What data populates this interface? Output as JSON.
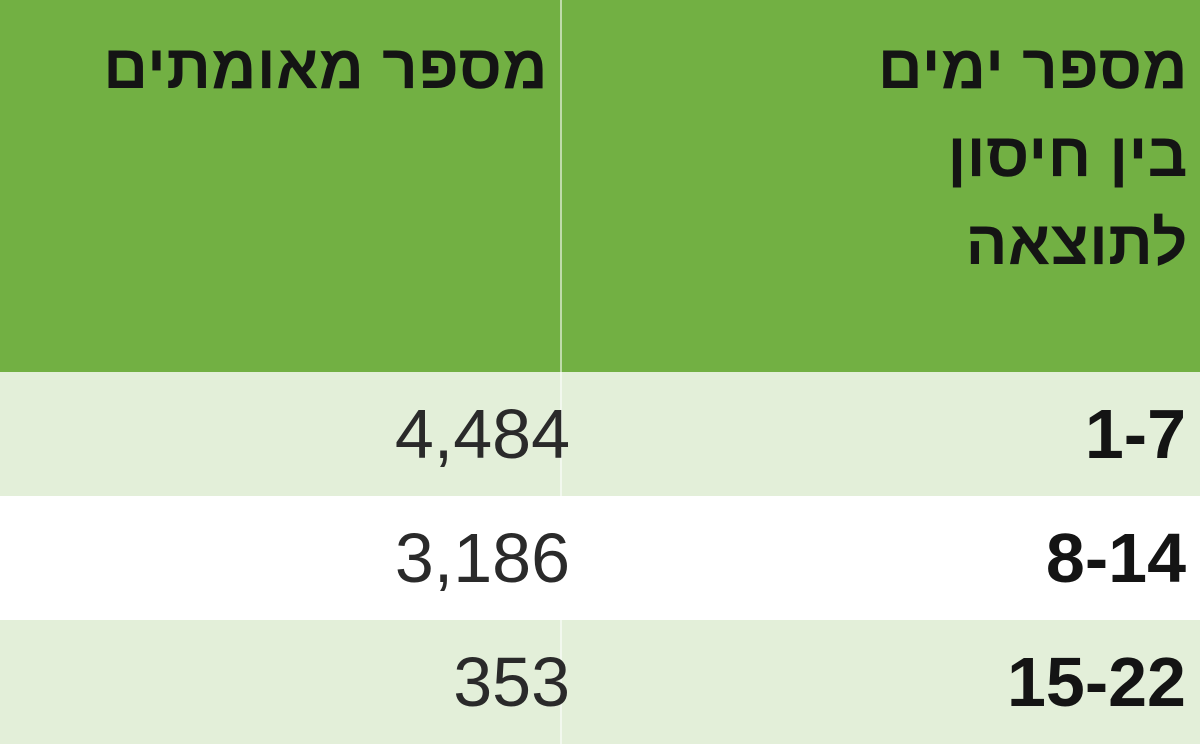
{
  "table": {
    "header": {
      "days_col": [
        "מספר ימים",
        "בין חיסון",
        "לתוצאה"
      ],
      "count_col": [
        "מספר מאומתים"
      ]
    },
    "rows": [
      {
        "days": "1-7",
        "count": "4,484"
      },
      {
        "days": "8-14",
        "count": "3,186"
      },
      {
        "days": "15-22",
        "count": "353"
      }
    ]
  },
  "colors": {
    "header_bg": "#72b043",
    "band_bg": "#e3efd9",
    "white_bg": "#ffffff"
  }
}
